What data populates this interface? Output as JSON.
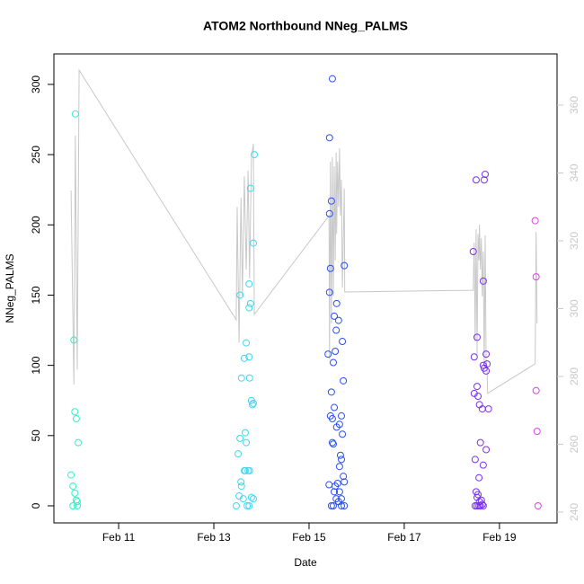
{
  "chart_data": {
    "type": "scatter",
    "title": "ATOM2 Northbound NNeg_PALMS",
    "x_label": "Date",
    "y_label": "NNeg_PALMS",
    "xlim": [
      9.64,
      20.21
    ],
    "xticks": [
      {
        "value": 11,
        "label": "Feb 11"
      },
      {
        "value": 13,
        "label": "Feb 13"
      },
      {
        "value": 15,
        "label": "Feb 15"
      },
      {
        "value": 17,
        "label": "Feb 17"
      },
      {
        "value": 19,
        "label": "Feb 19"
      }
    ],
    "ylim": [
      -12.16,
      321.7
    ],
    "yticks": [
      0,
      50,
      100,
      150,
      200,
      250,
      300
    ],
    "y2lim": [
      236.8,
      375.1
    ],
    "y2ticks": [
      240,
      260,
      280,
      300,
      320,
      340,
      360
    ],
    "grid": false,
    "series": [
      {
        "color": "#c8c8c8",
        "type": "line",
        "axis": "y2",
        "x": [
          10.0,
          10.06,
          10.09,
          10.13,
          10.17,
          13.47,
          13.49,
          13.53,
          13.57,
          13.6,
          13.64,
          13.68,
          13.72,
          13.75,
          13.79,
          13.83,
          13.85,
          15.42,
          15.43,
          15.45,
          15.47,
          15.49,
          15.51,
          15.53,
          15.55,
          15.57,
          15.58,
          15.6,
          15.62,
          15.64,
          15.66,
          15.68,
          15.7,
          15.74,
          15.75,
          18.45,
          18.47,
          18.49,
          18.51,
          18.53,
          18.55,
          18.57,
          18.58,
          18.6,
          18.62,
          18.64,
          18.66,
          18.68,
          18.7,
          18.72,
          18.74,
          18.75,
          19.75,
          19.77,
          19.79
        ],
        "values": [
          334.8,
          277.6,
          351,
          282,
          370.3,
          296.7,
          330,
          290,
          332.7,
          303.6,
          339,
          311.5,
          340.7,
          308.9,
          344.6,
          348.6,
          298.3,
          327.4,
          285,
          343.3,
          295.6,
          344.6,
          303.6,
          342,
          314.2,
          346,
          322,
          343.3,
          330,
          347.3,
          327.4,
          338,
          306.2,
          335.4,
          304.9,
          305.4,
          319.5,
          290.3,
          323.4,
          286.4,
          322,
          314.2,
          324.8,
          311.5,
          320.8,
          303.6,
          316.8,
          282.4,
          321.6,
          285,
          282.4,
          275,
          283.7,
          322.6,
          295.6
        ]
      },
      {
        "color": "#33f0c8",
        "type": "points",
        "x": [
          10.09,
          10.06,
          10.08,
          10.11,
          10.15,
          10.0,
          10.04,
          10.08,
          10.11,
          10.13,
          10.04,
          10.13
        ],
        "values": [
          279,
          118,
          67,
          62,
          45,
          22,
          14,
          9,
          4,
          3,
          0,
          0
        ]
      },
      {
        "color": "#40d8f0",
        "type": "points",
        "x": [
          13.85,
          13.77,
          13.83,
          13.74,
          13.55,
          13.77,
          13.74,
          13.68,
          13.74,
          13.64,
          13.58,
          13.75,
          13.79,
          13.83,
          13.81,
          13.66,
          13.55,
          13.68,
          13.66,
          13.72,
          13.75,
          13.51,
          13.57,
          13.58,
          13.64,
          13.53,
          13.62,
          13.79,
          13.83,
          13.47,
          13.7,
          13.74
        ],
        "values": [
          250,
          226,
          187,
          158,
          150,
          144,
          141,
          116,
          106,
          105,
          91,
          91,
          75,
          73,
          72,
          52,
          48,
          45,
          25,
          25,
          25,
          37,
          17,
          14,
          25,
          7,
          5,
          6,
          5,
          0,
          0,
          0
        ]
      },
      {
        "color": "#2a50ef",
        "type": "points",
        "x": [
          15.49,
          15.43,
          15.47,
          15.43,
          15.74,
          15.45,
          15.43,
          15.58,
          15.53,
          15.62,
          15.57,
          15.7,
          15.4,
          15.55,
          15.51,
          15.72,
          15.47,
          15.53,
          15.45,
          15.68,
          15.49,
          15.64,
          15.58,
          15.7,
          15.49,
          15.51,
          15.66,
          15.68,
          15.64,
          15.72,
          15.74,
          15.6,
          15.55,
          15.42,
          15.53,
          15.64,
          15.57,
          15.68,
          15.62,
          15.47,
          15.51,
          15.68,
          15.74
        ],
        "values": [
          304,
          262,
          217,
          208,
          171,
          169,
          152,
          144,
          135,
          132,
          125,
          117,
          108,
          110,
          102,
          89,
          81,
          70,
          64,
          64,
          62,
          58,
          56,
          51,
          45,
          44,
          36,
          33,
          28,
          21,
          17,
          16,
          14,
          15,
          10,
          10,
          5,
          5,
          3,
          0,
          0,
          0,
          0
        ]
      },
      {
        "color": "#7a30f0",
        "type": "points",
        "x": [
          18.51,
          18.7,
          18.68,
          18.45,
          18.66,
          18.53,
          18.72,
          18.47,
          18.66,
          18.74,
          18.68,
          18.72,
          18.53,
          18.47,
          18.55,
          18.58,
          18.64,
          18.77,
          18.6,
          18.72,
          18.49,
          18.66,
          18.57,
          18.51,
          18.55,
          18.53,
          18.62,
          18.58,
          18.64,
          18.57,
          18.6,
          18.66,
          18.53,
          18.49
        ],
        "values": [
          232,
          236,
          232,
          181,
          160,
          120,
          108,
          106,
          100,
          101,
          98,
          96,
          85,
          80,
          78,
          72,
          69,
          69,
          45,
          40,
          33,
          29,
          20,
          10,
          8,
          6,
          4,
          3,
          1,
          0,
          0,
          0,
          0,
          0
        ]
      },
      {
        "color": "#e040f0",
        "type": "points",
        "x": [
          19.75,
          19.77,
          19.77,
          19.79,
          19.81
        ],
        "values": [
          203,
          163,
          82,
          53,
          0
        ]
      }
    ]
  }
}
